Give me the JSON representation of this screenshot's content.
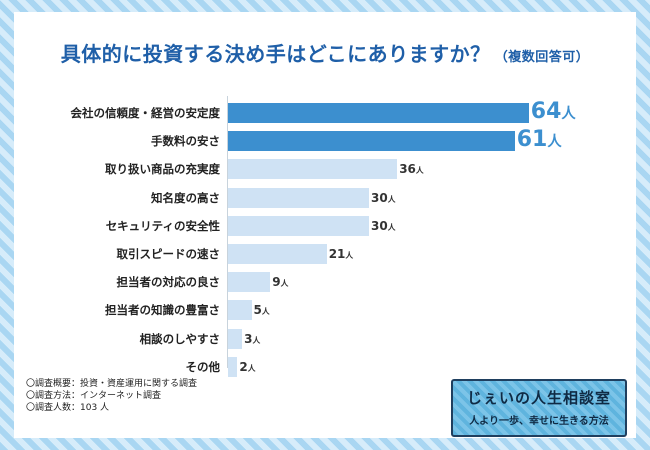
{
  "title": "具体的に投資する決め手はどこにありますか？",
  "title_note": "（複数回答可）",
  "chart_data": {
    "type": "bar",
    "orientation": "horizontal",
    "categories": [
      "会社の信頼度・経営の安定度",
      "手数料の安さ",
      "取り扱い商品の充実度",
      "知名度の高さ",
      "セキュリティの安全性",
      "取引スピードの速さ",
      "担当者の対応の良さ",
      "担当者の知識の豊富さ",
      "相談のしやすさ",
      "その他"
    ],
    "values": [
      64,
      61,
      36,
      30,
      30,
      21,
      9,
      5,
      3,
      2
    ],
    "value_labels": [
      "64",
      "61",
      "36",
      "30",
      "30",
      "21",
      "9",
      "5",
      "3",
      "2"
    ],
    "unit": "人",
    "highlight_count": 2,
    "colors": {
      "highlight": "#3c8fcf",
      "normal": "#cfe2f4",
      "highlight_text": "#3c8fcf",
      "normal_text": "#333333"
    }
  },
  "notes": [
    "〇調査概要：投資・資産運用に関する調査",
    "〇調査方法：インターネット調査",
    "〇調査人数：103 人"
  ],
  "brand": {
    "name": "じぇいの人生相談室",
    "tagline": "人より一歩、幸せに生きる方法"
  }
}
